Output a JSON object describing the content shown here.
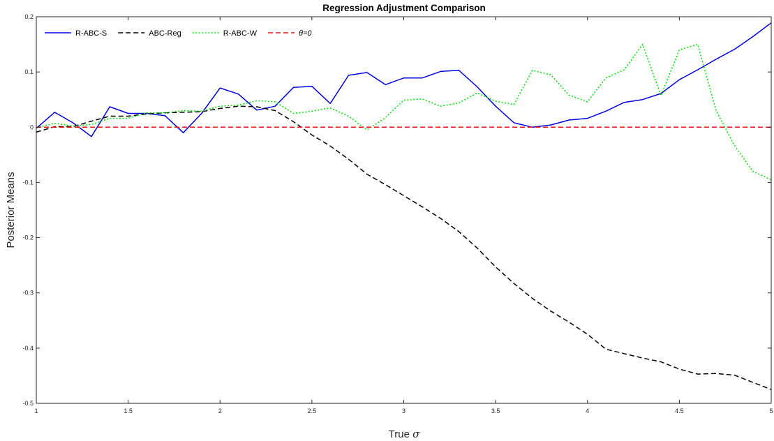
{
  "chart_data": {
    "type": "line",
    "title": "Regression Adjustment Comparison",
    "xlabel_prefix": "True ",
    "xlabel_symbol": "σ",
    "ylabel": "Posterior Means",
    "xlim": [
      1,
      5
    ],
    "ylim": [
      -0.5,
      0.2
    ],
    "xticks": [
      1,
      1.5,
      2,
      2.5,
      3,
      3.5,
      4,
      4.5,
      5
    ],
    "xtick_labels": [
      "1",
      "1.5",
      "2",
      "2.5",
      "3",
      "3.5",
      "4",
      "4.5",
      "5"
    ],
    "yticks": [
      -0.5,
      -0.4,
      -0.3,
      -0.2,
      -0.1,
      0,
      0.1,
      0.2
    ],
    "ytick_labels": [
      "-0.5",
      "-0.4",
      "-0.3",
      "-0.2",
      "-0.1",
      "0",
      "0.1",
      "0.2"
    ],
    "grid": false,
    "legend_position": "top-left",
    "x": [
      1.0,
      1.1,
      1.2,
      1.3,
      1.4,
      1.5,
      1.6,
      1.7,
      1.8,
      1.9,
      2.0,
      2.1,
      2.2,
      2.3,
      2.4,
      2.5,
      2.6,
      2.7,
      2.8,
      2.9,
      3.0,
      3.1,
      3.2,
      3.3,
      3.4,
      3.5,
      3.6,
      3.7,
      3.8,
      3.9,
      4.0,
      4.1,
      4.2,
      4.3,
      4.4,
      4.5,
      4.6,
      4.7,
      4.8,
      4.9,
      5.0
    ],
    "series": [
      {
        "name": "R-ABC-S",
        "color": "#0000dd",
        "dash": "solid",
        "values": [
          -0.002,
          0.027,
          0.008,
          -0.017,
          0.037,
          0.025,
          0.025,
          0.021,
          -0.01,
          0.025,
          0.071,
          0.06,
          0.031,
          0.038,
          0.072,
          0.074,
          0.043,
          0.094,
          0.099,
          0.077,
          0.089,
          0.089,
          0.101,
          0.103,
          0.073,
          0.038,
          0.008,
          0.0,
          0.004,
          0.013,
          0.016,
          0.029,
          0.045,
          0.05,
          0.061,
          0.086,
          0.104,
          0.123,
          0.141,
          0.164,
          0.189
        ]
      },
      {
        "name": "ABC-Reg",
        "color": "#000000",
        "dash": "dashed",
        "values": [
          -0.009,
          0.001,
          0.001,
          0.011,
          0.02,
          0.02,
          0.024,
          0.026,
          0.027,
          0.028,
          0.034,
          0.038,
          0.037,
          0.03,
          0.01,
          -0.014,
          -0.034,
          -0.058,
          -0.085,
          -0.104,
          -0.124,
          -0.144,
          -0.165,
          -0.189,
          -0.219,
          -0.253,
          -0.283,
          -0.31,
          -0.333,
          -0.353,
          -0.375,
          -0.402,
          -0.41,
          -0.418,
          -0.425,
          -0.438,
          -0.447,
          -0.446,
          -0.449,
          -0.462,
          -0.475
        ]
      },
      {
        "name": "R-ABC-W",
        "color": "#00dd00",
        "dash": "dotted",
        "values": [
          -0.001,
          0.007,
          0.002,
          0.005,
          0.016,
          0.016,
          0.026,
          0.026,
          0.03,
          0.029,
          0.038,
          0.04,
          0.048,
          0.046,
          0.025,
          0.029,
          0.035,
          0.02,
          -0.005,
          0.017,
          0.049,
          0.051,
          0.038,
          0.044,
          0.062,
          0.047,
          0.041,
          0.103,
          0.095,
          0.058,
          0.046,
          0.089,
          0.104,
          0.15,
          0.057,
          0.14,
          0.15,
          0.03,
          -0.033,
          -0.08,
          -0.095
        ]
      },
      {
        "name": "θ=0",
        "color": "#ee1111",
        "dash": "dashed",
        "values": [
          0,
          0,
          0,
          0,
          0,
          0,
          0,
          0,
          0,
          0,
          0,
          0,
          0,
          0,
          0,
          0,
          0,
          0,
          0,
          0,
          0,
          0,
          0,
          0,
          0,
          0,
          0,
          0,
          0,
          0,
          0,
          0,
          0,
          0,
          0,
          0,
          0,
          0,
          0,
          0,
          0
        ]
      }
    ]
  }
}
